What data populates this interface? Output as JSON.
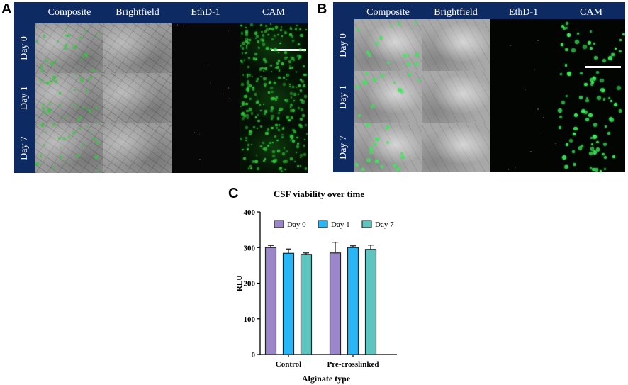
{
  "panel_a": {
    "letter": "A",
    "columns": [
      "Composite",
      "Brightfield",
      "EthD-1",
      "CAM"
    ],
    "rows": [
      "Day 0",
      "Day 1",
      "Day 7"
    ]
  },
  "panel_b": {
    "letter": "B",
    "columns": [
      "Composite",
      "Brightfield",
      "EthD-1",
      "CAM"
    ],
    "rows": [
      "Day 0",
      "Day 1",
      "Day 7"
    ]
  },
  "panel_c": {
    "letter": "C"
  },
  "colors": {
    "panel_background": "#0d2a63",
    "day0": "#9b86c9",
    "day1": "#29b6f6",
    "day7": "#5ec4c0",
    "cell_green": "#2ecc40"
  },
  "chart_data": {
    "type": "bar",
    "title": "CSF viability over time",
    "xlabel": "Alginate type",
    "ylabel": "RLU",
    "ylim": [
      0,
      400
    ],
    "yticks": [
      0,
      100,
      200,
      300,
      400
    ],
    "categories": [
      "Control",
      "Pre-crosslinked"
    ],
    "series": [
      {
        "name": "Day 0",
        "color": "#9b86c9",
        "values": [
          300,
          285
        ],
        "errors": [
          6,
          30
        ]
      },
      {
        "name": "Day 1",
        "color": "#29b6f6",
        "values": [
          284,
          300
        ],
        "errors": [
          12,
          5
        ]
      },
      {
        "name": "Day 7",
        "color": "#5ec4c0",
        "values": [
          281,
          295
        ],
        "errors": [
          4,
          12
        ]
      }
    ],
    "legend_position": "top",
    "grid": false
  }
}
